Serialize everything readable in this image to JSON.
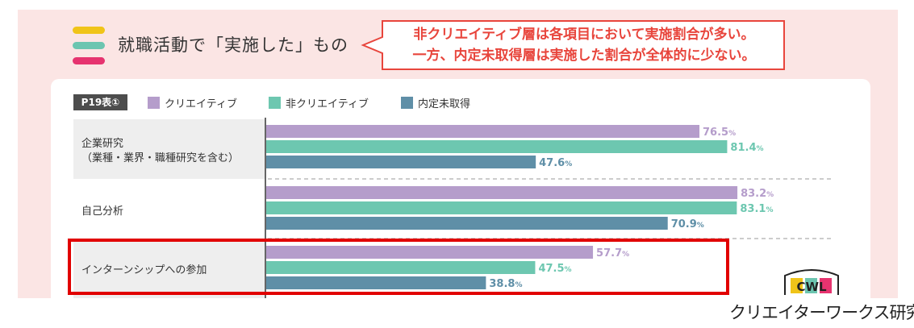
{
  "header": {
    "title": "就職活動で「実施した」もの",
    "callout_line1": "非クリエイティブ層は各項目において実施割合が多い。",
    "callout_line2": "一方、内定未取得層は実施した割合が全体的に少ない。"
  },
  "colors": {
    "deco": [
      "#f0c419",
      "#6cc5b0",
      "#e6336f"
    ],
    "accent": "#e8453c",
    "creative": "#b59dcb",
    "non_creative": "#6dc7b0",
    "no_offer": "#5f8fa7",
    "highlight": "#e10000"
  },
  "chart_data": {
    "type": "bar",
    "orientation": "horizontal",
    "table_tag": "P19表①",
    "categories": [
      [
        "企業研究",
        "（業種・業界・職種研究を含む）"
      ],
      [
        "自己分析"
      ],
      [
        "インターンシップへの参加"
      ]
    ],
    "series": [
      {
        "name": "クリエイティブ",
        "values": [
          76.5,
          83.2,
          57.7
        ]
      },
      {
        "name": "非クリエイティブ",
        "values": [
          81.4,
          83.1,
          47.5
        ]
      },
      {
        "name": "内定未取得",
        "values": [
          47.6,
          70.9,
          38.8
        ]
      }
    ],
    "unit": "%",
    "xlim": [
      0,
      100
    ],
    "legend_position": "top-left",
    "highlighted_category": "インターンシップへの参加"
  },
  "brand": {
    "logo_letters": "CWL",
    "name": "クリエイターワークス研究所"
  }
}
